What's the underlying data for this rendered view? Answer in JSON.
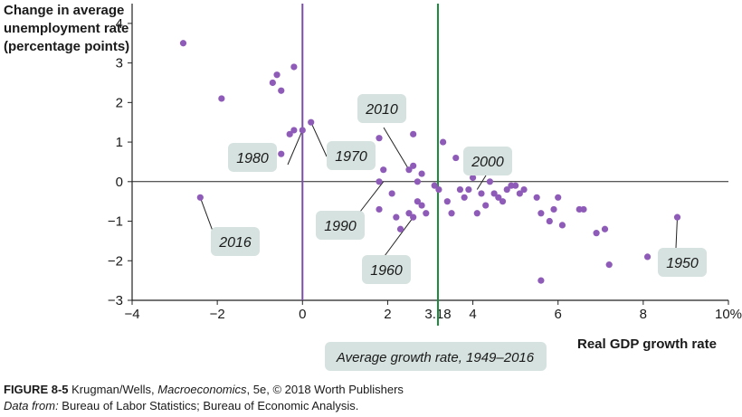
{
  "chart_data": {
    "type": "scatter",
    "ylabel": "Change in average unemployment rate (percentage points)",
    "xlabel": "Real GDP growth rate",
    "xlim": [
      -4,
      10
    ],
    "ylim": [
      -3,
      4.5
    ],
    "xticks": [
      {
        "value": -4,
        "label": "−4"
      },
      {
        "value": -2,
        "label": "−2"
      },
      {
        "value": 0,
        "label": "0"
      },
      {
        "value": 2,
        "label": "2"
      },
      {
        "value": 3.18,
        "label": "3.18"
      },
      {
        "value": 4,
        "label": "4"
      },
      {
        "value": 6,
        "label": "6"
      },
      {
        "value": 8,
        "label": "8"
      },
      {
        "value": 10,
        "label": "10%"
      }
    ],
    "yticks": [
      {
        "value": 4,
        "label": "4"
      },
      {
        "value": 3,
        "label": "3"
      },
      {
        "value": 2,
        "label": "2"
      },
      {
        "value": 1,
        "label": "1"
      },
      {
        "value": 0,
        "label": "0"
      },
      {
        "value": -1,
        "label": "−1"
      },
      {
        "value": -2,
        "label": "−2"
      },
      {
        "value": -3,
        "label": "−3"
      }
    ],
    "reference_lines": [
      {
        "axis": "x",
        "value": 0,
        "color": "#7b4fa8"
      },
      {
        "axis": "x",
        "value": 3.18,
        "color": "#1c8a3a",
        "label": "Average growth rate, 1949–2016"
      }
    ],
    "points": [
      {
        "x": -2.8,
        "y": 3.5
      },
      {
        "x": -1.9,
        "y": 2.1
      },
      {
        "x": -2.4,
        "y": -0.4
      },
      {
        "x": -0.7,
        "y": 2.5
      },
      {
        "x": -0.6,
        "y": 2.7
      },
      {
        "x": -0.5,
        "y": 2.3
      },
      {
        "x": -0.2,
        "y": 2.9
      },
      {
        "x": -0.5,
        "y": 0.7
      },
      {
        "x": -0.3,
        "y": 1.2
      },
      {
        "x": -0.2,
        "y": 1.3
      },
      {
        "x": 0.0,
        "y": 1.3
      },
      {
        "x": 0.2,
        "y": 1.5
      },
      {
        "x": 1.0,
        "y": 0.7
      },
      {
        "x": 1.8,
        "y": 1.1
      },
      {
        "x": 1.8,
        "y": -0.7
      },
      {
        "x": 1.8,
        "y": 0.0
      },
      {
        "x": 1.9,
        "y": 0.3
      },
      {
        "x": 2.1,
        "y": -0.3
      },
      {
        "x": 2.2,
        "y": -0.9
      },
      {
        "x": 2.3,
        "y": -1.2
      },
      {
        "x": 2.5,
        "y": 0.3
      },
      {
        "x": 2.5,
        "y": -0.8
      },
      {
        "x": 2.6,
        "y": 0.4
      },
      {
        "x": 2.6,
        "y": 1.2
      },
      {
        "x": 2.6,
        "y": -0.9
      },
      {
        "x": 2.7,
        "y": 0.0
      },
      {
        "x": 2.7,
        "y": -0.5
      },
      {
        "x": 2.8,
        "y": -0.6
      },
      {
        "x": 2.8,
        "y": 0.2
      },
      {
        "x": 2.9,
        "y": -0.8
      },
      {
        "x": 3.1,
        "y": -0.1
      },
      {
        "x": 3.2,
        "y": -0.2
      },
      {
        "x": 3.3,
        "y": 1.0
      },
      {
        "x": 3.4,
        "y": -0.5
      },
      {
        "x": 3.5,
        "y": -0.8
      },
      {
        "x": 3.6,
        "y": 0.6
      },
      {
        "x": 3.7,
        "y": -0.2
      },
      {
        "x": 3.8,
        "y": -0.4
      },
      {
        "x": 3.9,
        "y": -0.2
      },
      {
        "x": 4.0,
        "y": 0.1
      },
      {
        "x": 4.1,
        "y": -0.8
      },
      {
        "x": 4.2,
        "y": -0.3
      },
      {
        "x": 4.3,
        "y": -0.6
      },
      {
        "x": 4.4,
        "y": 0.0
      },
      {
        "x": 4.5,
        "y": -0.3
      },
      {
        "x": 4.6,
        "y": -0.4
      },
      {
        "x": 4.7,
        "y": -0.5
      },
      {
        "x": 4.8,
        "y": -0.2
      },
      {
        "x": 4.9,
        "y": -0.1
      },
      {
        "x": 5.0,
        "y": -0.1
      },
      {
        "x": 5.1,
        "y": -0.3
      },
      {
        "x": 5.2,
        "y": -0.2
      },
      {
        "x": 5.5,
        "y": -0.4
      },
      {
        "x": 5.6,
        "y": -0.8
      },
      {
        "x": 5.6,
        "y": -2.5
      },
      {
        "x": 5.8,
        "y": -1.0
      },
      {
        "x": 5.9,
        "y": -0.7
      },
      {
        "x": 6.0,
        "y": -0.4
      },
      {
        "x": 6.1,
        "y": -1.1
      },
      {
        "x": 6.5,
        "y": -0.7
      },
      {
        "x": 6.6,
        "y": -0.7
      },
      {
        "x": 6.9,
        "y": -1.3
      },
      {
        "x": 7.1,
        "y": -1.2
      },
      {
        "x": 7.2,
        "y": -2.1
      },
      {
        "x": 8.1,
        "y": -1.9
      },
      {
        "x": 8.8,
        "y": -0.9
      }
    ],
    "annotations": [
      {
        "label": "1980",
        "x": 0.0,
        "y": 1.3
      },
      {
        "label": "1970",
        "x": 0.2,
        "y": 1.5
      },
      {
        "label": "2010",
        "x": 2.5,
        "y": 0.3
      },
      {
        "label": "2000",
        "x": 4.1,
        "y": -0.2
      },
      {
        "label": "1990",
        "x": 1.9,
        "y": 0.0
      },
      {
        "label": "2016",
        "x": -2.4,
        "y": -0.4
      },
      {
        "label": "1960",
        "x": 2.6,
        "y": -0.9
      },
      {
        "label": "1950",
        "x": 8.8,
        "y": -0.9
      }
    ]
  },
  "caption": {
    "figure_label": "FIGURE 8-5",
    "author": " Krugman/Wells, ",
    "book": "Macroeconomics",
    "rest": ", 5e, © 2018 Worth Publishers",
    "source_label": "Data from:",
    "source_text": " Bureau of Labor Statistics; Bureau of Economic Analysis."
  },
  "colors": {
    "point": "#8e5bb8",
    "label_box": "#d5e2df",
    "zero_line": "#7b4fa8",
    "avg_line": "#1c8a3a"
  }
}
